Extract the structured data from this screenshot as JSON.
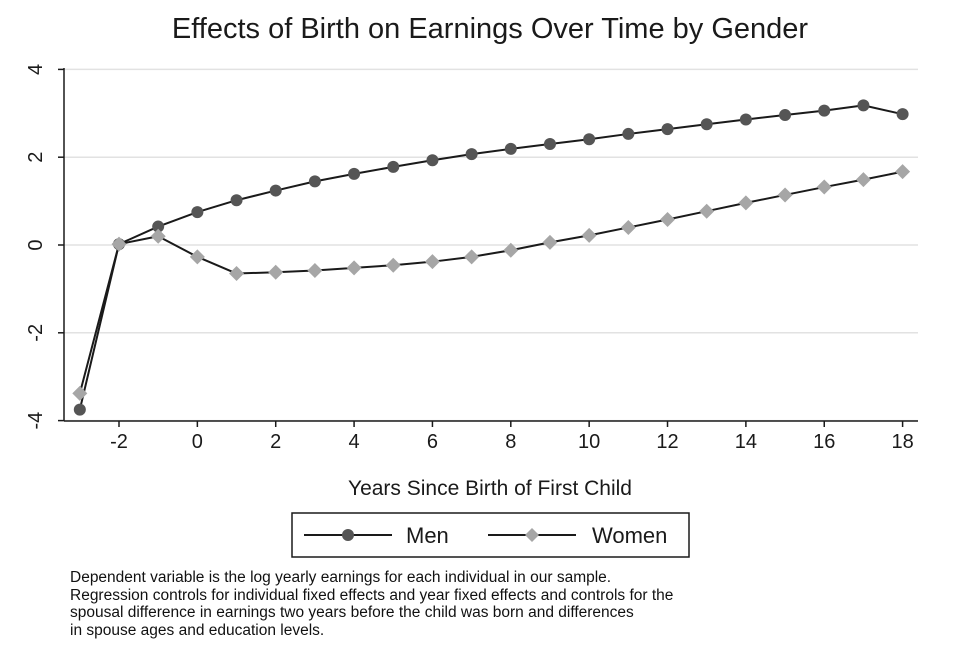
{
  "chart_data": {
    "type": "line",
    "title": "Effects of Birth on Earnings Over Time by Gender",
    "xlabel": "Years Since Birth of First Child",
    "ylabel": "",
    "xlim": [
      -3,
      18
    ],
    "ylim": [
      -4,
      4
    ],
    "xticks": [
      "-2",
      "0",
      "2",
      "4",
      "6",
      "8",
      "10",
      "12",
      "14",
      "16",
      "18"
    ],
    "yticks": [
      "-4",
      "-2",
      "0",
      "2",
      "4"
    ],
    "grid": true,
    "legend_position": "bottom",
    "x": [
      -3,
      -2,
      -1,
      0,
      1,
      2,
      3,
      4,
      5,
      6,
      7,
      8,
      9,
      10,
      11,
      12,
      13,
      14,
      15,
      16,
      17,
      18
    ],
    "series": [
      {
        "name": "Men",
        "marker": "circle",
        "color": "#555555",
        "line_color": "#1a1a1a",
        "values": [
          -3.75,
          0.02,
          0.42,
          0.75,
          1.02,
          1.24,
          1.45,
          1.62,
          1.78,
          1.93,
          2.07,
          2.19,
          2.3,
          2.41,
          2.53,
          2.64,
          2.75,
          2.86,
          2.96,
          3.06,
          3.18,
          2.98
        ]
      },
      {
        "name": "Women",
        "marker": "diamond",
        "color": "#a6a6a6",
        "line_color": "#1a1a1a",
        "values": [
          -3.38,
          0.02,
          0.2,
          -0.27,
          -0.65,
          -0.62,
          -0.58,
          -0.52,
          -0.46,
          -0.38,
          -0.27,
          -0.12,
          0.06,
          0.22,
          0.4,
          0.58,
          0.77,
          0.96,
          1.14,
          1.32,
          1.49,
          1.67
        ]
      }
    ]
  },
  "note": {
    "lines": [
      "Dependent variable is the log yearly earnings for each individual in our sample.",
      "Regression controls for individual fixed effects and year fixed effects and controls for the",
      "spousal difference in earnings two years before the child was born and differences",
      "in spouse ages and education levels."
    ]
  }
}
